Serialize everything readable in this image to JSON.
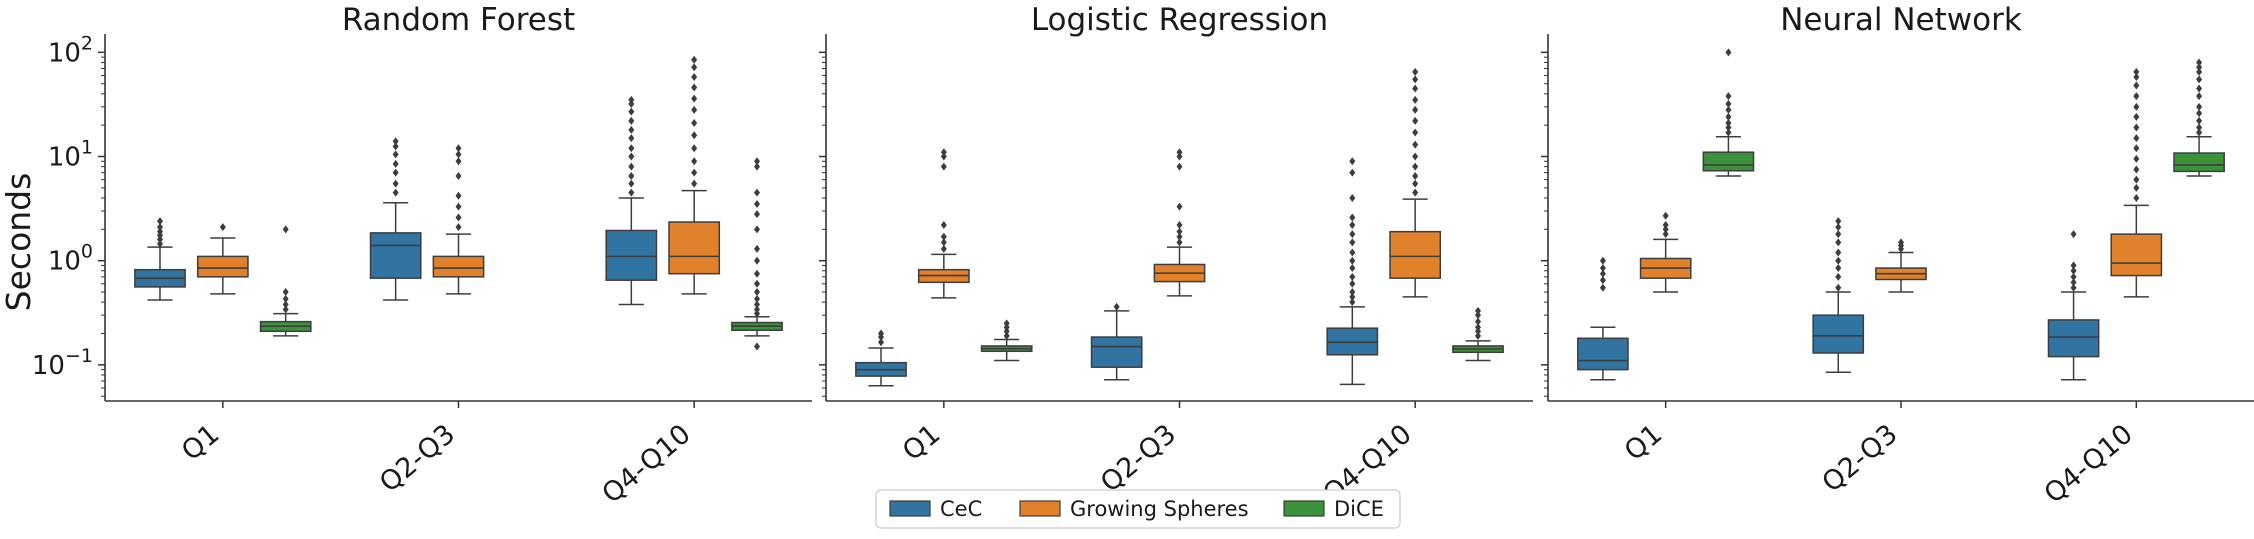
{
  "chart_data": {
    "type": "box",
    "ylabel": "Seconds",
    "y_scale": "log",
    "ylim": [
      0.045,
      150
    ],
    "y_ticks": [
      {
        "value": 0.1,
        "base": "10",
        "exp": "−1"
      },
      {
        "value": 1,
        "base": "10",
        "exp": "0"
      },
      {
        "value": 10,
        "base": "10",
        "exp": "1"
      },
      {
        "value": 100,
        "base": "10",
        "exp": "2"
      }
    ],
    "categories": [
      "Q1",
      "Q2-Q3",
      "Q4-Q10"
    ],
    "legend": {
      "placement": "bottom-center",
      "entries": [
        {
          "name": "CeC",
          "color": "#3274a1"
        },
        {
          "name": "Growing Spheres",
          "color": "#e1812c"
        },
        {
          "name": "DiCE",
          "color": "#3a923a"
        }
      ]
    },
    "panels": [
      {
        "title": "Random Forest",
        "boxes": [
          [
            {
              "low": 0.42,
              "q1": 0.56,
              "median": 0.68,
              "q3": 0.82,
              "high": 1.35,
              "outliers": [
                1.45,
                1.6,
                1.75,
                1.9,
                2.1,
                2.4
              ]
            },
            {
              "low": 0.48,
              "q1": 0.7,
              "median": 0.85,
              "q3": 1.1,
              "high": 1.65,
              "outliers": [
                2.1
              ]
            },
            {
              "low": 0.19,
              "q1": 0.21,
              "median": 0.235,
              "q3": 0.26,
              "high": 0.31,
              "outliers": [
                0.34,
                0.38,
                0.43,
                0.5,
                2.0
              ]
            }
          ],
          [
            {
              "low": 0.42,
              "q1": 0.68,
              "median": 1.4,
              "q3": 1.85,
              "high": 3.6,
              "outliers": [
                4.5,
                5.5,
                7.0,
                8.5,
                10.5,
                12.5,
                14.0
              ]
            },
            {
              "low": 0.48,
              "q1": 0.7,
              "median": 0.85,
              "q3": 1.1,
              "high": 1.8,
              "outliers": [
                2.1,
                2.6,
                3.3,
                4.2,
                6.5,
                9.0,
                10.5,
                12.0
              ]
            },
            null
          ],
          [
            {
              "low": 0.38,
              "q1": 0.65,
              "median": 1.1,
              "q3": 1.95,
              "high": 4.0,
              "outliers": [
                4.5,
                5.5,
                6.5,
                8.0,
                10.0,
                12.0,
                15.0,
                18.0,
                22.0,
                27.0,
                32.0,
                35.0
              ]
            },
            {
              "low": 0.48,
              "q1": 0.75,
              "median": 1.1,
              "q3": 2.35,
              "high": 4.7,
              "outliers": [
                5.5,
                7.0,
                9.0,
                12.0,
                16.0,
                21.0,
                28.0,
                36.0,
                46.0,
                58.0,
                72.0,
                85.0
              ]
            },
            {
              "low": 0.19,
              "q1": 0.215,
              "median": 0.235,
              "q3": 0.255,
              "high": 0.29,
              "outliers": [
                0.15,
                0.31,
                0.34,
                0.38,
                0.43,
                0.5,
                0.6,
                0.75,
                1.0,
                1.3,
                2.0,
                2.8,
                3.5,
                4.5,
                8.0,
                9.0
              ]
            }
          ]
        ]
      },
      {
        "title": "Logistic Regression",
        "boxes": [
          [
            {
              "low": 0.063,
              "q1": 0.078,
              "median": 0.09,
              "q3": 0.105,
              "high": 0.145,
              "outliers": [
                0.165,
                0.185,
                0.2
              ]
            },
            {
              "low": 0.44,
              "q1": 0.62,
              "median": 0.72,
              "q3": 0.82,
              "high": 1.15,
              "outliers": [
                1.3,
                1.5,
                1.7,
                2.2,
                8.0,
                10.0,
                11.0
              ]
            },
            {
              "low": 0.11,
              "q1": 0.135,
              "median": 0.143,
              "q3": 0.152,
              "high": 0.175,
              "outliers": [
                0.19,
                0.21,
                0.23,
                0.25
              ]
            }
          ],
          [
            {
              "low": 0.072,
              "q1": 0.095,
              "median": 0.15,
              "q3": 0.185,
              "high": 0.33,
              "outliers": [
                0.36
              ]
            },
            {
              "low": 0.46,
              "q1": 0.63,
              "median": 0.76,
              "q3": 0.92,
              "high": 1.35,
              "outliers": [
                1.5,
                1.7,
                1.9,
                2.2,
                3.3,
                8.0,
                10.0,
                11.0
              ]
            },
            null
          ],
          [
            {
              "low": 0.065,
              "q1": 0.125,
              "median": 0.165,
              "q3": 0.225,
              "high": 0.36,
              "outliers": [
                0.4,
                0.45,
                0.5,
                0.6,
                0.7,
                0.85,
                1.0,
                1.2,
                1.5,
                1.8,
                2.2,
                2.6,
                4.0,
                7.0,
                9.0
              ]
            },
            {
              "low": 0.45,
              "q1": 0.68,
              "median": 1.1,
              "q3": 1.9,
              "high": 3.9,
              "outliers": [
                4.5,
                5.5,
                6.5,
                8.0,
                10.0,
                13.0,
                17.0,
                22.0,
                28.0,
                35.0,
                45.0,
                55.0,
                65.0
              ]
            },
            {
              "low": 0.11,
              "q1": 0.132,
              "median": 0.142,
              "q3": 0.152,
              "high": 0.17,
              "outliers": [
                0.19,
                0.21,
                0.23,
                0.26,
                0.3,
                0.33
              ]
            }
          ]
        ]
      },
      {
        "title": "Neural Network",
        "boxes": [
          [
            {
              "low": 0.072,
              "q1": 0.09,
              "median": 0.11,
              "q3": 0.18,
              "high": 0.23,
              "outliers": [
                0.55,
                0.65,
                0.75,
                0.85,
                1.0
              ]
            },
            {
              "low": 0.5,
              "q1": 0.68,
              "median": 0.85,
              "q3": 1.05,
              "high": 1.6,
              "outliers": [
                1.8,
                2.0,
                2.2,
                2.7
              ]
            },
            {
              "low": 6.5,
              "q1": 7.3,
              "median": 8.3,
              "q3": 11.0,
              "high": 15.5,
              "outliers": [
                17.0,
                19.0,
                21.0,
                24.0,
                28.0,
                32.0,
                38.0,
                100.0
              ]
            }
          ],
          [
            {
              "low": 0.085,
              "q1": 0.13,
              "median": 0.19,
              "q3": 0.3,
              "high": 0.5,
              "outliers": [
                0.55,
                0.7,
                0.85,
                1.0,
                1.2,
                1.5,
                1.8,
                2.1,
                2.4
              ]
            },
            {
              "low": 0.5,
              "q1": 0.66,
              "median": 0.75,
              "q3": 0.85,
              "high": 1.2,
              "outliers": [
                1.3,
                1.4,
                1.5
              ]
            },
            null
          ],
          [
            {
              "low": 0.072,
              "q1": 0.12,
              "median": 0.185,
              "q3": 0.27,
              "high": 0.5,
              "outliers": [
                0.55,
                0.62,
                0.7,
                0.8,
                0.9,
                1.8
              ]
            },
            {
              "low": 0.45,
              "q1": 0.72,
              "median": 0.95,
              "q3": 1.8,
              "high": 3.4,
              "outliers": [
                4.0,
                5.0,
                6.0,
                7.5,
                9.5,
                12.0,
                15.0,
                19.0,
                24.0,
                30.0,
                38.0,
                48.0,
                58.0,
                65.0
              ]
            },
            {
              "low": 6.5,
              "q1": 7.2,
              "median": 8.3,
              "q3": 10.8,
              "high": 15.5,
              "outliers": [
                17.0,
                19.0,
                22.0,
                26.0,
                30.0,
                38.0,
                45.0,
                55.0,
                65.0,
                72.0,
                80.0
              ]
            }
          ]
        ]
      }
    ]
  }
}
